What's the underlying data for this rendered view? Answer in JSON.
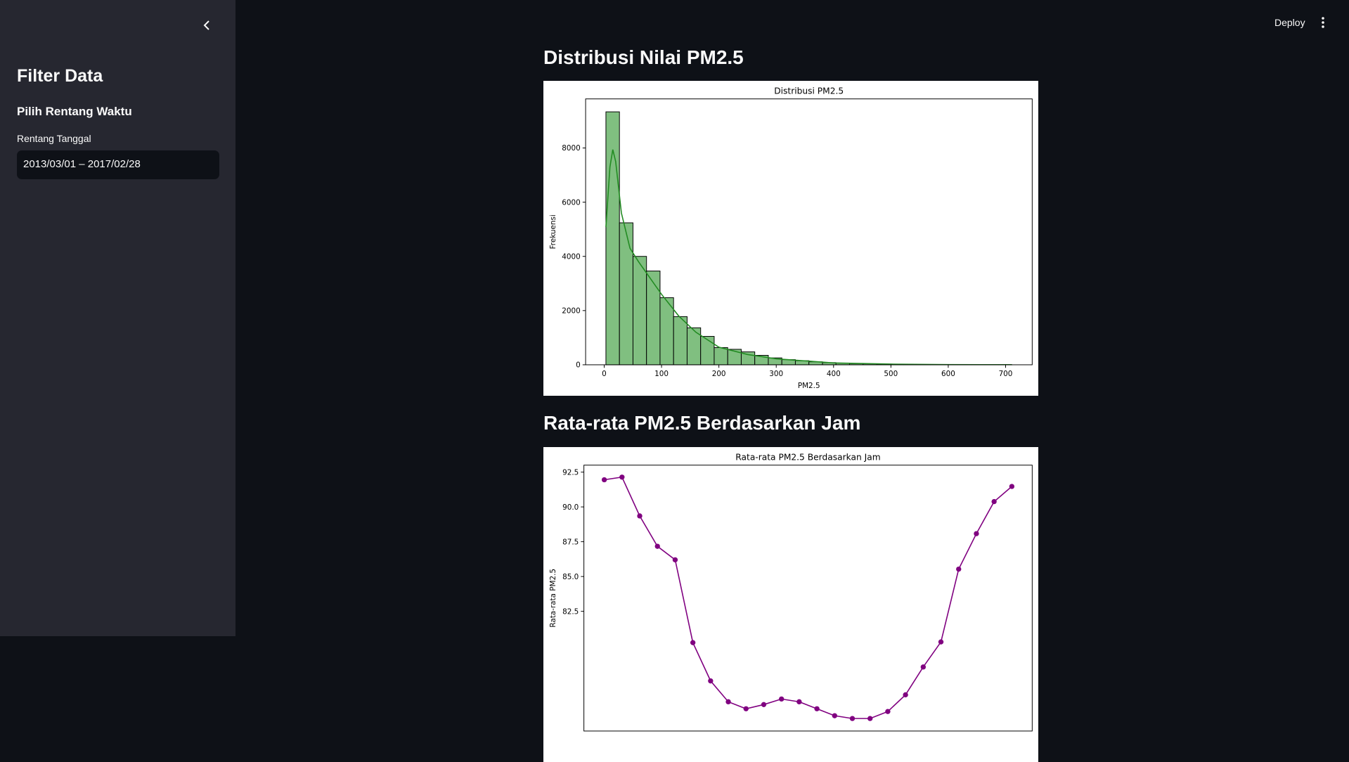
{
  "sidebar": {
    "title": "Filter Data",
    "subheader": "Pilih Rentang Waktu",
    "date_input": {
      "label": "Rentang Tanggal",
      "value": "2013/03/01 – 2017/02/28"
    }
  },
  "toolbar": {
    "deploy": "Deploy"
  },
  "sections": [
    {
      "heading": "Distribusi Nilai PM2.5",
      "chart_data": {
        "type": "histogram",
        "title": "Distribusi PM2.5",
        "x_label": "PM2.5",
        "y_label": "Frekuensi",
        "bins": [
          3,
          26.6,
          50.2,
          73.8,
          97.4,
          121,
          144.6,
          168.2,
          191.8,
          215.4,
          239,
          262.6,
          286.2,
          309.8,
          333.4,
          357,
          380.6,
          404.2,
          427.8,
          451.4,
          475,
          498.6,
          522.2,
          545.8,
          569.4,
          593,
          616.6,
          640.2,
          663.8,
          687.4,
          711
        ],
        "values": [
          9333,
          5238,
          4000,
          3460,
          2476,
          1778,
          1365,
          1048,
          635,
          571,
          476,
          349,
          254,
          190,
          150,
          110,
          80,
          60,
          45,
          35,
          25,
          18,
          12,
          9,
          6,
          4,
          3,
          2,
          1,
          1
        ],
        "color": "#80bf80",
        "edgecolor": "#000000",
        "kde": {
          "x": [
            3,
            10,
            15,
            20,
            30,
            45,
            60,
            80,
            100,
            130,
            160,
            200,
            250,
            300,
            400,
            500,
            600,
            711
          ],
          "values": [
            5080,
            7300,
            7940,
            7500,
            5600,
            4300,
            3800,
            3200,
            2600,
            1800,
            1200,
            650,
            380,
            220,
            70,
            25,
            8,
            2
          ],
          "color": "#228b22"
        },
        "xlim": [
          -32.4,
          746.4
        ],
        "xticks": [
          0,
          100,
          200,
          300,
          400,
          500,
          600,
          700
        ],
        "ylim": [
          0,
          9810
        ],
        "yticks": [
          0,
          2000,
          4000,
          6000,
          8000
        ]
      }
    },
    {
      "heading": "Rata-rata PM2.5 Berdasarkan Jam",
      "chart_data": {
        "type": "line",
        "title": "Rata-rata PM2.5 Berdasarkan Jam",
        "y_label": "Rata-rata PM2.5",
        "x": [
          0,
          1,
          2,
          3,
          4,
          5,
          6,
          7,
          8,
          9,
          10,
          11,
          12,
          13,
          14,
          15,
          16,
          17,
          18,
          19,
          20,
          21,
          22,
          23
        ],
        "values": [
          91.95,
          92.14,
          89.35,
          87.17,
          86.2,
          80.25,
          77.5,
          76,
          75.5,
          75.8,
          76.2,
          76,
          75.5,
          75,
          74.8,
          74.8,
          75.3,
          76.5,
          78.5,
          80.3,
          85.53,
          88.08,
          90.38,
          91.47
        ],
        "color": "#800080",
        "marker": "o",
        "xlim": [
          -1.15,
          24.15
        ],
        "ylim": [
          73.9,
          93.0
        ],
        "yticks": [
          {
            "value": 82.5,
            "label": "82.5"
          },
          {
            "value": 85,
            "label": "85.0"
          },
          {
            "value": 87.5,
            "label": "87.5"
          },
          {
            "value": 90,
            "label": "90.0"
          },
          {
            "value": 92.5,
            "label": "92.5"
          }
        ]
      }
    }
  ]
}
